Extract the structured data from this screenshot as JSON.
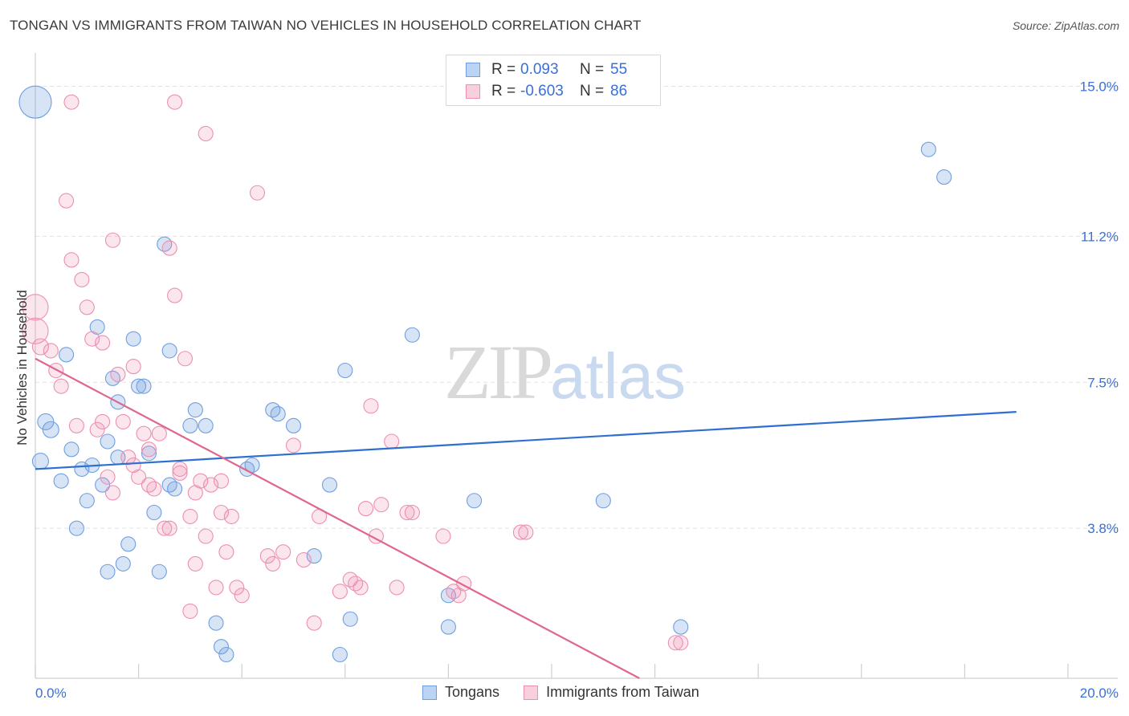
{
  "header": {
    "title": "TONGAN VS IMMIGRANTS FROM TAIWAN NO VEHICLES IN HOUSEHOLD CORRELATION CHART",
    "source": "Source: ZipAtlas.com"
  },
  "watermark": {
    "zip": "ZIP",
    "atlas": "atlas"
  },
  "legend": {
    "rows": [
      {
        "r_label": "R =",
        "r_value": "0.093",
        "n_label": "N =",
        "n_value": "55"
      },
      {
        "r_label": "R =",
        "r_value": "-0.603",
        "n_label": "N =",
        "n_value": "86"
      }
    ]
  },
  "bottom_legend": {
    "items": [
      "Tongans",
      "Immigrants from Taiwan"
    ]
  },
  "chart_data": {
    "type": "scatter",
    "title": "TONGAN VS IMMIGRANTS FROM TAIWAN NO VEHICLES IN HOUSEHOLD CORRELATION CHART",
    "ylabel": "No Vehicles in Household",
    "xlabel": "",
    "x_tick_labels": [
      "0.0%",
      "20.0%"
    ],
    "y_tick_labels": [
      "3.8%",
      "7.5%",
      "11.2%",
      "15.0%"
    ],
    "y_ticks": [
      3.8,
      7.5,
      11.2,
      15.0
    ],
    "xlim": [
      0,
      20
    ],
    "ylim": [
      0,
      15.6
    ],
    "grid": true,
    "legend_position": "top-center",
    "colors": {
      "tongans": "#6f9fe0",
      "taiwan": "#ec8fb0",
      "tongans_line": "#2f6fcf",
      "taiwan_line": "#e0668f"
    },
    "series": [
      {
        "name": "Tongans",
        "color": "#6f9fe0",
        "trend": {
          "x": [
            0,
            19.0
          ],
          "y": [
            5.3,
            6.75
          ]
        },
        "points": [
          [
            0.0,
            14.6,
            20
          ],
          [
            0.1,
            5.5,
            10
          ],
          [
            0.2,
            6.5,
            10
          ],
          [
            0.3,
            6.3,
            10
          ],
          [
            0.5,
            5.0,
            9
          ],
          [
            0.6,
            8.2,
            9
          ],
          [
            0.7,
            5.8,
            9
          ],
          [
            0.8,
            3.8,
            9
          ],
          [
            0.9,
            5.3,
            9
          ],
          [
            1.0,
            4.5,
            9
          ],
          [
            1.1,
            5.4,
            9
          ],
          [
            1.2,
            8.9,
            9
          ],
          [
            1.3,
            4.9,
            9
          ],
          [
            1.4,
            6.0,
            9
          ],
          [
            1.4,
            2.7,
            9
          ],
          [
            1.5,
            7.6,
            9
          ],
          [
            1.6,
            7.0,
            9
          ],
          [
            1.6,
            5.6,
            9
          ],
          [
            1.7,
            2.9,
            9
          ],
          [
            1.8,
            3.4,
            9
          ],
          [
            1.9,
            8.6,
            9
          ],
          [
            2.0,
            7.4,
            9
          ],
          [
            2.1,
            7.4,
            9
          ],
          [
            2.2,
            5.7,
            9
          ],
          [
            2.3,
            4.2,
            9
          ],
          [
            2.4,
            2.7,
            9
          ],
          [
            2.5,
            11.0,
            9
          ],
          [
            2.6,
            8.3,
            9
          ],
          [
            2.6,
            4.9,
            9
          ],
          [
            2.7,
            4.8,
            9
          ],
          [
            3.0,
            6.4,
            9
          ],
          [
            3.1,
            6.8,
            9
          ],
          [
            3.3,
            6.4,
            9
          ],
          [
            3.5,
            1.4,
            9
          ],
          [
            3.6,
            0.8,
            9
          ],
          [
            3.7,
            0.6,
            9
          ],
          [
            4.1,
            5.3,
            9
          ],
          [
            4.2,
            5.4,
            9
          ],
          [
            4.6,
            6.8,
            9
          ],
          [
            4.7,
            6.7,
            9
          ],
          [
            5.0,
            6.4,
            9
          ],
          [
            5.4,
            3.1,
            9
          ],
          [
            5.7,
            4.9,
            9
          ],
          [
            5.9,
            0.6,
            9
          ],
          [
            6.0,
            7.8,
            9
          ],
          [
            6.1,
            1.5,
            9
          ],
          [
            7.3,
            8.7,
            9
          ],
          [
            8.0,
            1.3,
            9
          ],
          [
            8.0,
            2.1,
            9
          ],
          [
            8.5,
            4.5,
            9
          ],
          [
            11.0,
            4.5,
            9
          ],
          [
            12.5,
            1.3,
            9
          ],
          [
            17.3,
            13.4,
            9
          ],
          [
            17.6,
            12.7,
            9
          ]
        ]
      },
      {
        "name": "Immigrants from Taiwan",
        "color": "#ec8fb0",
        "trend": {
          "x": [
            0,
            11.7
          ],
          "y": [
            8.1,
            0.0
          ]
        },
        "points": [
          [
            0.0,
            9.4,
            16
          ],
          [
            0.0,
            8.8,
            16
          ],
          [
            0.1,
            8.4,
            10
          ],
          [
            0.3,
            8.3,
            9
          ],
          [
            0.4,
            7.8,
            9
          ],
          [
            0.5,
            7.4,
            9
          ],
          [
            0.6,
            12.1,
            9
          ],
          [
            0.7,
            10.6,
            9
          ],
          [
            0.7,
            14.6,
            9
          ],
          [
            0.8,
            6.4,
            9
          ],
          [
            0.9,
            10.1,
            9
          ],
          [
            1.0,
            9.4,
            9
          ],
          [
            1.1,
            8.6,
            9
          ],
          [
            1.2,
            6.3,
            9
          ],
          [
            1.3,
            8.5,
            9
          ],
          [
            1.3,
            6.5,
            9
          ],
          [
            1.4,
            5.1,
            9
          ],
          [
            1.5,
            4.7,
            9
          ],
          [
            1.5,
            11.1,
            9
          ],
          [
            1.6,
            7.7,
            9
          ],
          [
            1.7,
            6.5,
            9
          ],
          [
            1.8,
            5.6,
            9
          ],
          [
            1.9,
            5.4,
            9
          ],
          [
            1.9,
            7.9,
            9
          ],
          [
            2.0,
            5.1,
            9
          ],
          [
            2.1,
            6.2,
            9
          ],
          [
            2.2,
            5.8,
            9
          ],
          [
            2.2,
            4.9,
            9
          ],
          [
            2.3,
            4.8,
            9
          ],
          [
            2.4,
            6.2,
            9
          ],
          [
            2.5,
            3.8,
            9
          ],
          [
            2.6,
            3.8,
            9
          ],
          [
            2.6,
            10.9,
            9
          ],
          [
            2.7,
            9.7,
            9
          ],
          [
            2.7,
            14.6,
            9
          ],
          [
            2.8,
            5.3,
            9
          ],
          [
            2.8,
            5.2,
            9
          ],
          [
            2.9,
            8.1,
            9
          ],
          [
            3.0,
            1.7,
            9
          ],
          [
            3.0,
            4.1,
            9
          ],
          [
            3.1,
            2.9,
            9
          ],
          [
            3.1,
            4.7,
            9
          ],
          [
            3.2,
            5.0,
            9
          ],
          [
            3.3,
            3.6,
            9
          ],
          [
            3.3,
            13.8,
            9
          ],
          [
            3.4,
            4.9,
            9
          ],
          [
            3.5,
            2.3,
            9
          ],
          [
            3.6,
            5.0,
            9
          ],
          [
            3.6,
            4.2,
            9
          ],
          [
            3.7,
            3.2,
            9
          ],
          [
            3.8,
            4.1,
            9
          ],
          [
            3.9,
            2.3,
            9
          ],
          [
            4.0,
            2.1,
            9
          ],
          [
            4.3,
            12.3,
            9
          ],
          [
            4.5,
            3.1,
            9
          ],
          [
            4.6,
            2.9,
            9
          ],
          [
            4.8,
            3.2,
            9
          ],
          [
            5.0,
            5.9,
            9
          ],
          [
            5.2,
            3.0,
            9
          ],
          [
            5.4,
            1.4,
            9
          ],
          [
            5.5,
            4.1,
            9
          ],
          [
            5.9,
            2.2,
            9
          ],
          [
            6.1,
            2.5,
            9
          ],
          [
            6.2,
            2.4,
            9
          ],
          [
            6.3,
            2.3,
            9
          ],
          [
            6.4,
            4.3,
            9
          ],
          [
            6.5,
            6.9,
            9
          ],
          [
            6.6,
            3.6,
            9
          ],
          [
            6.7,
            4.4,
            9
          ],
          [
            6.9,
            6.0,
            9
          ],
          [
            7.0,
            2.3,
            9
          ],
          [
            7.2,
            4.2,
            9
          ],
          [
            7.3,
            4.2,
            9
          ],
          [
            7.9,
            3.6,
            9
          ],
          [
            8.1,
            2.2,
            9
          ],
          [
            8.2,
            2.1,
            9
          ],
          [
            8.3,
            2.4,
            9
          ],
          [
            9.4,
            3.7,
            9
          ],
          [
            9.5,
            3.7,
            9
          ],
          [
            12.4,
            0.9,
            9
          ],
          [
            12.5,
            0.9,
            9
          ]
        ]
      }
    ]
  }
}
